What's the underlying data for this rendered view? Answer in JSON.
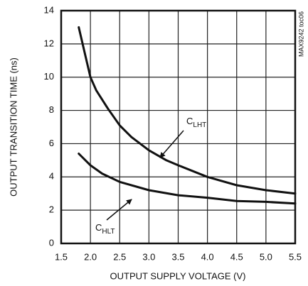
{
  "chart_data": {
    "type": "line",
    "x_label": "OUTPUT SUPPLY VOLTAGE (V)",
    "y_label": "OUTPUT TRANSITION TIME (ns)",
    "figure_id": "MAX9242 toc06",
    "xlim": [
      1.5,
      5.5
    ],
    "xticks": [
      1.5,
      {
        "value": 2,
        "label": "2.0"
      },
      2.5,
      {
        "value": 3,
        "label": "3.0"
      },
      3.5,
      {
        "value": 4,
        "label": "4.0"
      },
      4.5,
      {
        "value": 5,
        "label": "5.0"
      },
      5.5
    ],
    "ylim": [
      0,
      14
    ],
    "yticks": [
      0,
      2,
      4,
      6,
      8,
      10,
      12,
      14
    ],
    "grid": true,
    "series": [
      {
        "name": "C",
        "name_subscript": "LHT",
        "color": "#111111",
        "x": [
          1.8,
          1.9,
          2.0,
          2.1,
          2.3,
          2.5,
          2.7,
          3.0,
          3.3,
          3.5,
          4.0,
          4.5,
          5.0,
          5.5
        ],
        "values": [
          13,
          11.5,
          10,
          9.2,
          8.1,
          7.1,
          6.4,
          5.6,
          5.0,
          4.7,
          4.0,
          3.5,
          3.2,
          3.0
        ]
      },
      {
        "name": "C",
        "name_subscript": "HLT",
        "color": "#111111",
        "x": [
          1.8,
          2.0,
          2.2,
          2.5,
          3.0,
          3.5,
          4.0,
          4.5,
          5.0,
          5.5
        ],
        "values": [
          5.4,
          4.7,
          4.2,
          3.7,
          3.2,
          2.9,
          2.75,
          2.55,
          2.5,
          2.4
        ]
      }
    ]
  }
}
